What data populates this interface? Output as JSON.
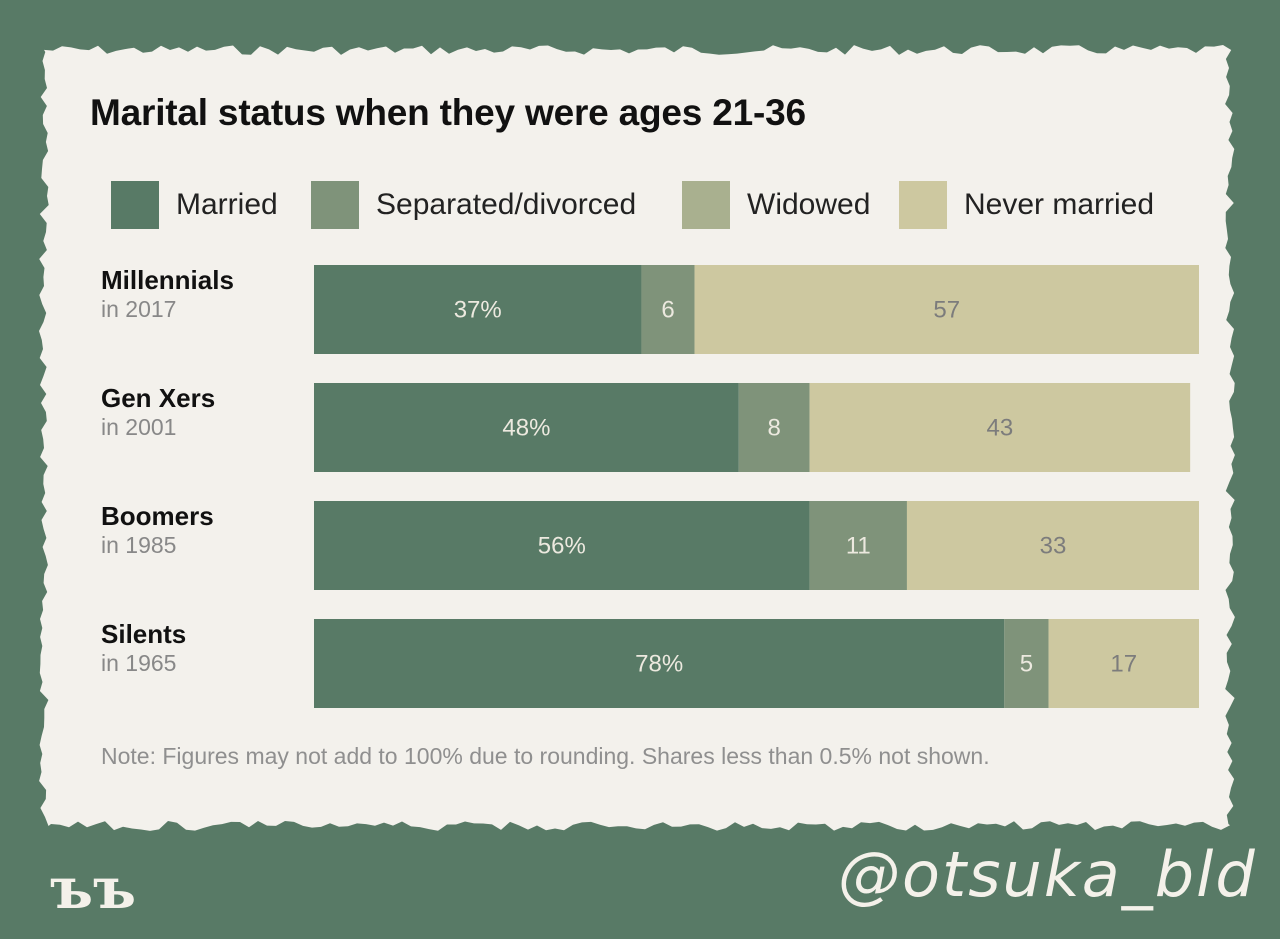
{
  "title": "Marital status when they were ages 21-36",
  "note": "Note: Figures may not add to 100% due to rounding. Shares less than 0.5% not shown.",
  "handle": "@otsuka_bld",
  "logo_text": "ъъ",
  "colors": {
    "background": "#587a66",
    "paper": "#f3f1ec",
    "married": "#587a66",
    "separated": "#7f937a",
    "widowed": "#a9b08f",
    "never_married": "#cdc8a0",
    "label_light": "#ece9df",
    "label_dark": "#7c7c7c"
  },
  "legend": [
    {
      "label": "Married",
      "color": "#587a66"
    },
    {
      "label": "Separated/divorced",
      "color": "#7f937a"
    },
    {
      "label": "Widowed",
      "color": "#a9b08f"
    },
    {
      "label": "Never married",
      "color": "#cdc8a0"
    }
  ],
  "rows": [
    {
      "generation": "Millennials",
      "year": "in 2017"
    },
    {
      "generation": "Gen Xers",
      "year": "in 2001"
    },
    {
      "generation": "Boomers",
      "year": "in 1985"
    },
    {
      "generation": "Silents",
      "year": "in 1965"
    }
  ],
  "chart_data": {
    "type": "bar",
    "orientation": "horizontal",
    "stacked": true,
    "title": "Marital status when they were ages 21-36",
    "categories": [
      "Millennials in 2017",
      "Gen Xers in 2001",
      "Boomers in 1985",
      "Silents in 1965"
    ],
    "series": [
      {
        "name": "Married",
        "values": [
          37,
          48,
          56,
          78
        ],
        "labels": [
          "37%",
          "48%",
          "56%",
          "78%"
        ]
      },
      {
        "name": "Separated/divorced",
        "values": [
          6,
          8,
          11,
          5
        ],
        "labels": [
          "6",
          "8",
          "11",
          "5"
        ]
      },
      {
        "name": "Widowed",
        "values": [
          0,
          0,
          0,
          0
        ],
        "labels": [
          "",
          "",
          "",
          ""
        ]
      },
      {
        "name": "Never married",
        "values": [
          57,
          43,
          33,
          17
        ],
        "labels": [
          "57",
          "43",
          "33",
          "17"
        ]
      }
    ],
    "xlim": [
      0,
      100
    ],
    "grid": false,
    "legend_position": "top",
    "note": "Note: Figures may not add to 100% due to rounding. Shares less than 0.5% not shown."
  }
}
